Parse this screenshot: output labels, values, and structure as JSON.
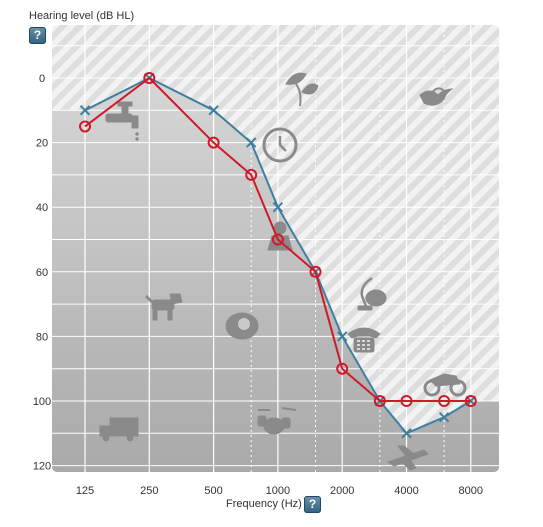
{
  "chart_data": {
    "type": "line",
    "title": "",
    "ylabel": "Hearing level (dB HL)",
    "xlabel": "Frequency (Hz)",
    "x_ticks": [
      "125",
      "250",
      "500",
      "1000",
      "2000",
      "4000",
      "8000"
    ],
    "y_ticks": [
      "0",
      "20",
      "40",
      "60",
      "80",
      "100",
      "120"
    ],
    "ylim": [
      -15,
      123
    ],
    "y_inverted": true,
    "x_scale": "log",
    "grid": true,
    "series": [
      {
        "marker": "x",
        "color": "#3f7fa0",
        "x": [
          125,
          250,
          500,
          750,
          1000,
          1500,
          2000,
          3000,
          4000,
          6000,
          8000
        ],
        "y": [
          10,
          0,
          10,
          20,
          40,
          60,
          80,
          100,
          110,
          105,
          100
        ]
      },
      {
        "marker": "o",
        "color": "#d01a2a",
        "x": [
          125,
          250,
          500,
          750,
          1000,
          1500,
          2000,
          3000,
          4000,
          6000,
          8000
        ],
        "y": [
          15,
          0,
          20,
          30,
          50,
          60,
          90,
          100,
          100,
          100,
          100
        ]
      }
    ]
  },
  "help": {
    "glyph": "?"
  },
  "colors": {
    "area_dark": "#b4b4b4",
    "area_light": "#f2f2f2",
    "hatch": "#dcdcdc"
  },
  "icons": [
    "faucet-icon",
    "leaves-icon",
    "bird-icon",
    "clock-icon",
    "dog-icon",
    "vacuum-icon",
    "phone-icon",
    "baby-icon",
    "truck-icon",
    "drums-icon",
    "motorcycle-icon",
    "airplane-icon"
  ]
}
